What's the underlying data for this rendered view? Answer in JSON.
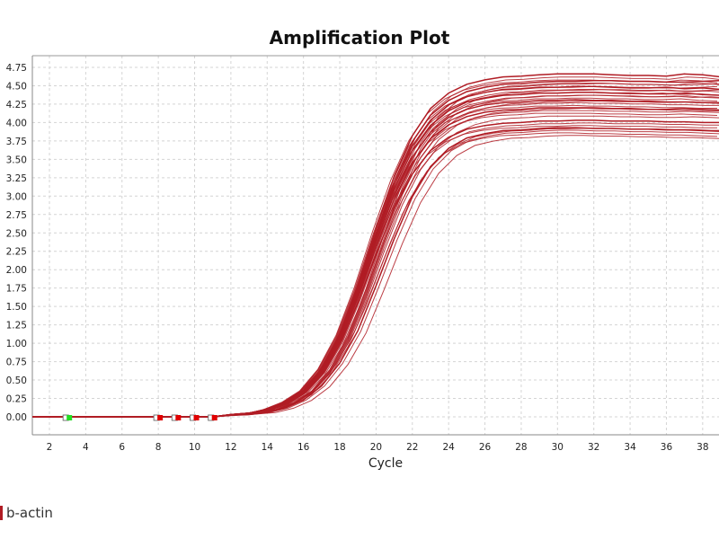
{
  "chart_data": {
    "type": "line",
    "title": "Amplification Plot",
    "xlabel": "Cycle",
    "ylabel": "",
    "xlim": [
      1,
      39
    ],
    "ylim": [
      -0.25,
      4.98
    ],
    "x_ticks": [
      "2",
      "4",
      "6",
      "8",
      "10",
      "12",
      "14",
      "16",
      "18",
      "20",
      "22",
      "24",
      "26",
      "28",
      "30",
      "32",
      "34",
      "36",
      "38"
    ],
    "y_ticks": [
      "0.00",
      "0.25",
      "0.50",
      "0.75",
      "1.00",
      "1.25",
      "1.50",
      "1.75",
      "2.00",
      "2.25",
      "2.50",
      "2.75",
      "3.00",
      "3.25",
      "3.50",
      "3.75",
      "4.00",
      "4.25",
      "4.50",
      "4.75"
    ],
    "grid": true,
    "series_color": "#b01c24",
    "x": [
      1,
      2,
      3,
      4,
      5,
      6,
      7,
      8,
      9,
      10,
      11,
      12,
      13,
      14,
      15,
      16,
      17,
      18,
      19,
      20,
      21,
      22,
      23,
      24,
      25,
      26,
      27,
      28,
      29,
      30,
      31,
      32,
      33,
      34,
      35,
      36,
      37,
      38,
      39
    ],
    "series": [
      {
        "values": [
          0,
          0,
          0,
          0,
          0,
          0,
          0,
          0,
          0,
          0,
          0,
          0.03,
          0.05,
          0.1,
          0.2,
          0.36,
          0.66,
          1.13,
          1.79,
          2.56,
          3.27,
          3.82,
          4.19,
          4.4,
          4.52,
          4.58,
          4.62,
          4.63,
          4.65,
          4.66,
          4.66,
          4.66,
          4.65,
          4.64,
          4.64,
          4.63,
          4.66,
          4.65,
          4.62
        ]
      },
      {
        "values": [
          0,
          0,
          0,
          0,
          0,
          0,
          0,
          0,
          0,
          0,
          0,
          0.03,
          0.05,
          0.1,
          0.19,
          0.35,
          0.65,
          1.11,
          1.75,
          2.5,
          3.2,
          3.74,
          4.1,
          4.3,
          4.42,
          4.48,
          4.52,
          4.53,
          4.55,
          4.56,
          4.56,
          4.57,
          4.57,
          4.56,
          4.56,
          4.55,
          4.55,
          4.56,
          4.57
        ]
      },
      {
        "values": [
          0,
          0,
          0,
          0,
          0,
          0,
          0,
          0,
          0,
          0,
          0,
          0.03,
          0.05,
          0.1,
          0.19,
          0.35,
          0.64,
          1.09,
          1.72,
          2.46,
          3.15,
          3.68,
          4.03,
          4.24,
          4.35,
          4.41,
          4.45,
          4.46,
          4.48,
          4.48,
          4.49,
          4.49,
          4.48,
          4.47,
          4.47,
          4.48,
          4.46,
          4.47,
          4.45
        ]
      },
      {
        "values": [
          0,
          0,
          0,
          0,
          0,
          0,
          0,
          0,
          0,
          0,
          0,
          0.03,
          0.05,
          0.1,
          0.18,
          0.34,
          0.62,
          1.07,
          1.69,
          2.42,
          3.1,
          3.62,
          3.96,
          4.16,
          4.28,
          4.33,
          4.37,
          4.38,
          4.4,
          4.4,
          4.41,
          4.41,
          4.4,
          4.4,
          4.39,
          4.39,
          4.4,
          4.38,
          4.37
        ]
      },
      {
        "values": [
          0,
          0,
          0,
          0,
          0,
          0,
          0,
          0,
          0,
          0,
          0,
          0.03,
          0.05,
          0.09,
          0.18,
          0.34,
          0.61,
          1.05,
          1.66,
          2.37,
          3.03,
          3.53,
          3.87,
          4.07,
          4.18,
          4.24,
          4.27,
          4.28,
          4.3,
          4.3,
          4.31,
          4.3,
          4.3,
          4.29,
          4.29,
          4.28,
          4.28,
          4.27,
          4.27
        ]
      },
      {
        "values": [
          0,
          0,
          0,
          0,
          0,
          0,
          0,
          0,
          0,
          0,
          0,
          0.03,
          0.05,
          0.09,
          0.18,
          0.33,
          0.6,
          1.02,
          1.62,
          2.31,
          2.96,
          3.45,
          3.78,
          3.97,
          4.08,
          4.14,
          4.17,
          4.18,
          4.2,
          4.2,
          4.2,
          4.2,
          4.19,
          4.19,
          4.18,
          4.18,
          4.19,
          4.18,
          4.17
        ]
      },
      {
        "values": [
          0,
          0,
          0,
          0,
          0,
          0,
          0,
          0,
          0,
          0,
          0,
          0.02,
          0.04,
          0.09,
          0.17,
          0.31,
          0.57,
          0.98,
          1.55,
          2.21,
          2.83,
          3.3,
          3.62,
          3.8,
          3.91,
          3.96,
          3.99,
          4.0,
          4.02,
          4.02,
          4.03,
          4.03,
          4.02,
          4.02,
          4.02,
          4.01,
          4.01,
          4.0,
          4.0
        ]
      },
      {
        "values": [
          0,
          0,
          0,
          0,
          0,
          0,
          0,
          0,
          0,
          0,
          0,
          0.02,
          0.03,
          0.06,
          0.12,
          0.23,
          0.42,
          0.73,
          1.17,
          1.78,
          2.42,
          2.99,
          3.4,
          3.65,
          3.79,
          3.85,
          3.89,
          3.9,
          3.92,
          3.93,
          3.93,
          3.92,
          3.92,
          3.91,
          3.91,
          3.9,
          3.9,
          3.89,
          3.88
        ]
      }
    ],
    "markers": [
      {
        "cycle": 3,
        "color": "#22dd22"
      },
      {
        "cycle": 8,
        "color": "#e00000"
      },
      {
        "cycle": 9,
        "color": "#e00000"
      },
      {
        "cycle": 10,
        "color": "#e00000"
      },
      {
        "cycle": 11,
        "color": "#e00000"
      }
    ],
    "legend": {
      "entries": [
        "b-actin"
      ],
      "placement": "bottom-left"
    }
  }
}
